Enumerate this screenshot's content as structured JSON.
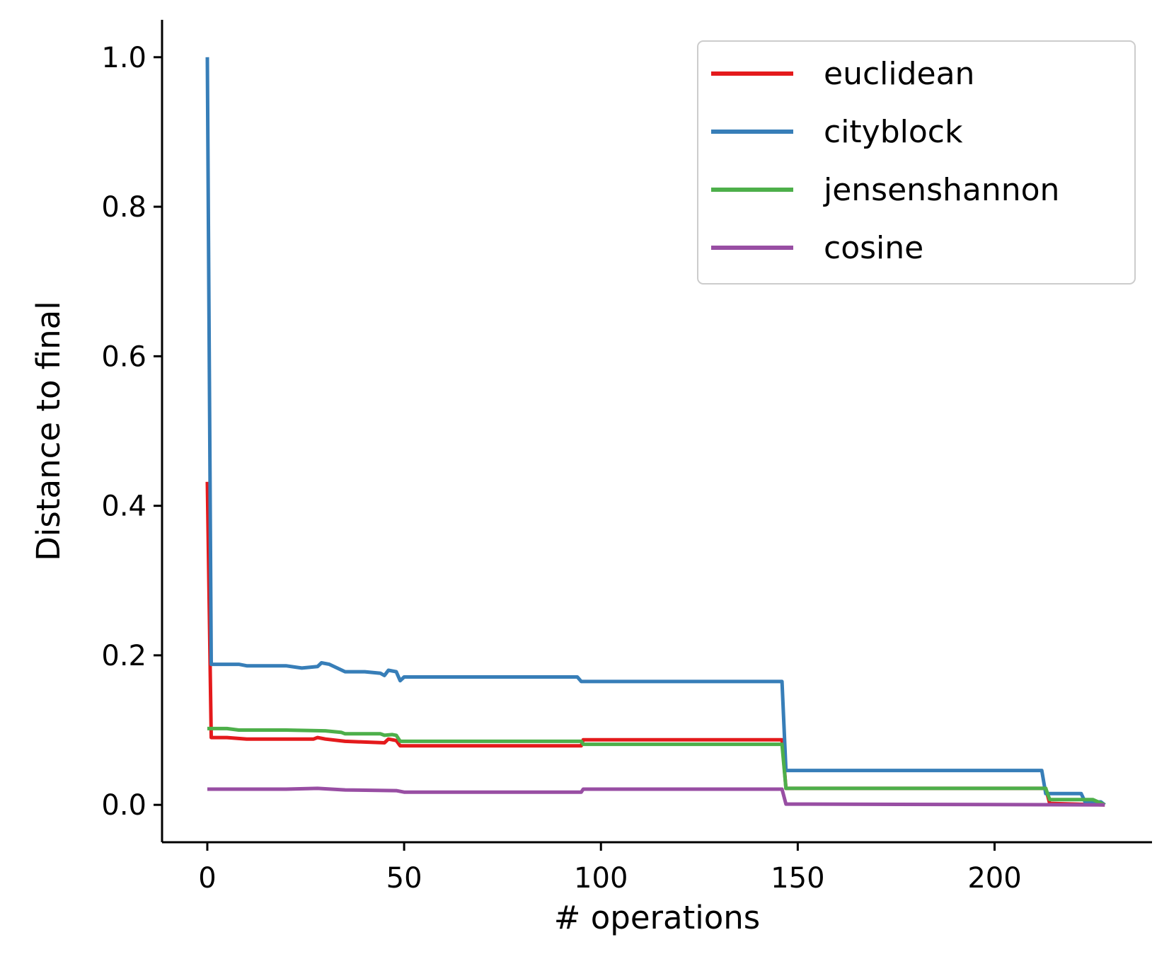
{
  "chart_data": {
    "type": "line",
    "title": "",
    "xlabel": "# operations",
    "ylabel": "Distance to final",
    "xlim": [
      -11.5,
      240
    ],
    "ylim": [
      -0.05,
      1.05
    ],
    "x_ticks": [
      0,
      50,
      100,
      150,
      200
    ],
    "x_tick_labels": [
      "0",
      "50",
      "100",
      "150",
      "200"
    ],
    "y_ticks": [
      0.0,
      0.2,
      0.4,
      0.6,
      0.8,
      1.0
    ],
    "y_tick_labels": [
      "0.0",
      "0.2",
      "0.4",
      "0.6",
      "0.8",
      "1.0"
    ],
    "grid": false,
    "legend_position": "top-right",
    "series": [
      {
        "name": "euclidean",
        "color": "#e41a1c",
        "points": [
          [
            0,
            0.432
          ],
          [
            1,
            0.09
          ],
          [
            5,
            0.09
          ],
          [
            10,
            0.088
          ],
          [
            20,
            0.088
          ],
          [
            27,
            0.088
          ],
          [
            28,
            0.09
          ],
          [
            30,
            0.088
          ],
          [
            35,
            0.085
          ],
          [
            45,
            0.083
          ],
          [
            46,
            0.088
          ],
          [
            48,
            0.086
          ],
          [
            49,
            0.079
          ],
          [
            95,
            0.079
          ],
          [
            95.5,
            0.087
          ],
          [
            146,
            0.087
          ],
          [
            147,
            0.022
          ],
          [
            213,
            0.022
          ],
          [
            214,
            0.002
          ],
          [
            228,
            0.0
          ]
        ]
      },
      {
        "name": "cityblock",
        "color": "#377eb8",
        "points": [
          [
            0,
            1.0
          ],
          [
            1,
            0.188
          ],
          [
            8,
            0.188
          ],
          [
            10,
            0.186
          ],
          [
            20,
            0.186
          ],
          [
            24,
            0.183
          ],
          [
            28,
            0.185
          ],
          [
            29,
            0.19
          ],
          [
            31,
            0.188
          ],
          [
            35,
            0.178
          ],
          [
            40,
            0.178
          ],
          [
            44,
            0.176
          ],
          [
            45,
            0.173
          ],
          [
            46,
            0.18
          ],
          [
            48,
            0.178
          ],
          [
            49,
            0.166
          ],
          [
            50,
            0.171
          ],
          [
            94,
            0.171
          ],
          [
            95,
            0.165
          ],
          [
            146,
            0.165
          ],
          [
            147,
            0.046
          ],
          [
            212,
            0.046
          ],
          [
            213,
            0.015
          ],
          [
            222,
            0.015
          ],
          [
            223,
            0.004
          ],
          [
            227,
            0.004
          ],
          [
            228,
            0.0
          ]
        ]
      },
      {
        "name": "jensenshannon",
        "color": "#4daf4a",
        "points": [
          [
            0,
            0.102
          ],
          [
            5,
            0.102
          ],
          [
            8,
            0.1
          ],
          [
            20,
            0.1
          ],
          [
            30,
            0.099
          ],
          [
            34,
            0.097
          ],
          [
            35,
            0.095
          ],
          [
            44,
            0.095
          ],
          [
            45,
            0.093
          ],
          [
            47,
            0.094
          ],
          [
            48,
            0.093
          ],
          [
            49,
            0.085
          ],
          [
            95,
            0.085
          ],
          [
            95.5,
            0.081
          ],
          [
            146,
            0.081
          ],
          [
            147,
            0.022
          ],
          [
            213,
            0.022
          ],
          [
            214,
            0.007
          ],
          [
            225,
            0.007
          ],
          [
            228,
            0.0
          ]
        ]
      },
      {
        "name": "cosine",
        "color": "#984ea3",
        "points": [
          [
            0,
            0.021
          ],
          [
            20,
            0.021
          ],
          [
            28,
            0.022
          ],
          [
            35,
            0.02
          ],
          [
            48,
            0.019
          ],
          [
            50,
            0.017
          ],
          [
            95,
            0.017
          ],
          [
            95.5,
            0.021
          ],
          [
            146,
            0.021
          ],
          [
            147,
            0.001
          ],
          [
            228,
            0.0
          ]
        ]
      }
    ]
  }
}
